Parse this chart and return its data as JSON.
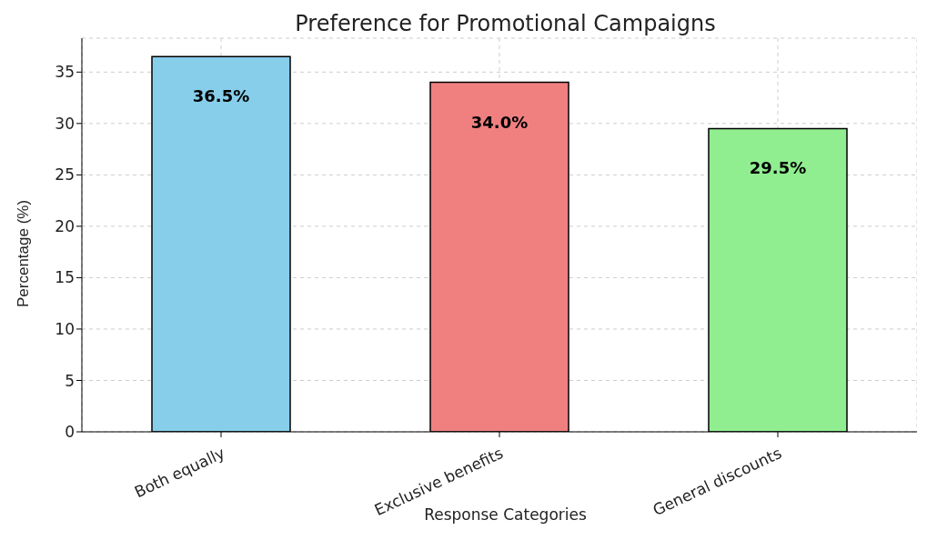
{
  "chart_data": {
    "type": "bar",
    "title": "Preference for Promotional Campaigns",
    "xlabel": "Response Categories",
    "ylabel": "Percentage (%)",
    "categories": [
      "Both equally",
      "Exclusive benefits",
      "General discounts"
    ],
    "values": [
      36.5,
      34.0,
      29.5
    ],
    "colors": [
      "#87ceeb",
      "#f08080",
      "#90ee90"
    ],
    "value_labels": [
      "36.5%",
      "34.0%",
      "29.5%"
    ],
    "ylim": [
      0,
      38.3
    ],
    "yticks": [
      0,
      5,
      10,
      15,
      20,
      25,
      30,
      35
    ],
    "grid": true
  }
}
